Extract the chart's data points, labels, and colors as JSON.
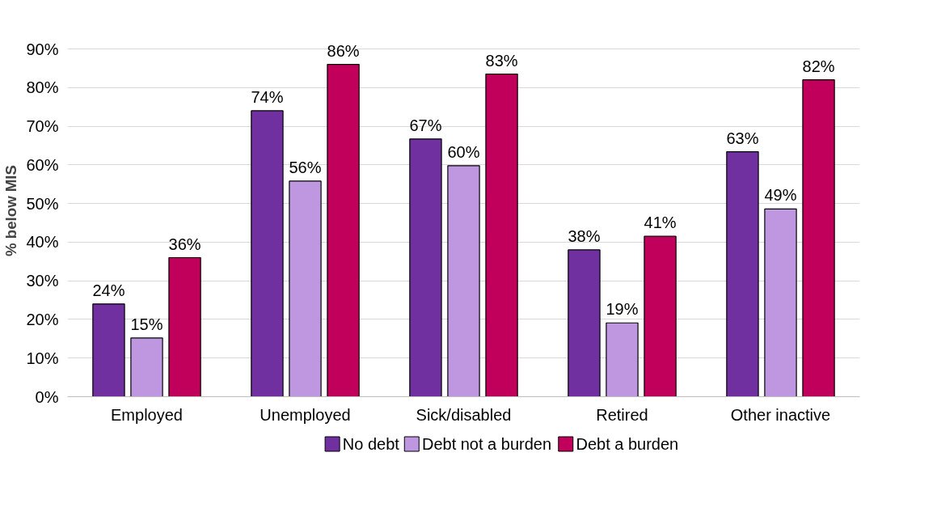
{
  "chart_data": {
    "type": "bar",
    "ylabel": "% below MIS",
    "categories": [
      "Employed",
      "Unemployed",
      "Sick/disabled",
      "Retired",
      "Other inactive"
    ],
    "series": [
      {
        "name": "No debt",
        "color": "#7030a0",
        "values": [
          24.0,
          74.0,
          66.7,
          38.0,
          63.4
        ],
        "value_labels": [
          "24%",
          "74%",
          "67%",
          "38%",
          "63%"
        ]
      },
      {
        "name": "Debt not a burden",
        "color": "#bf96e0",
        "values": [
          15.2,
          55.8,
          59.8,
          19.1,
          48.6
        ],
        "value_labels": [
          "15%",
          "56%",
          "60%",
          "19%",
          "49%"
        ]
      },
      {
        "name": "Debt a burden",
        "color": "#c0005a",
        "values": [
          36,
          86,
          83.5,
          41.5,
          82
        ],
        "value_labels": [
          "36%",
          "86%",
          "83%",
          "41%",
          "82%"
        ]
      }
    ],
    "ylim": [
      0,
      90
    ],
    "yticks": [
      {
        "value": 0,
        "label": "0%"
      },
      {
        "value": 10,
        "label": "10%"
      },
      {
        "value": 20,
        "label": "20%"
      },
      {
        "value": 30,
        "label": "30%"
      },
      {
        "value": 40,
        "label": "40%"
      },
      {
        "value": 50,
        "label": "50%"
      },
      {
        "value": 60,
        "label": "60%"
      },
      {
        "value": 70,
        "label": "70%"
      },
      {
        "value": 80,
        "label": "80%"
      },
      {
        "value": 90,
        "label": "90%"
      }
    ],
    "grid": "y",
    "legend": "bottom"
  }
}
